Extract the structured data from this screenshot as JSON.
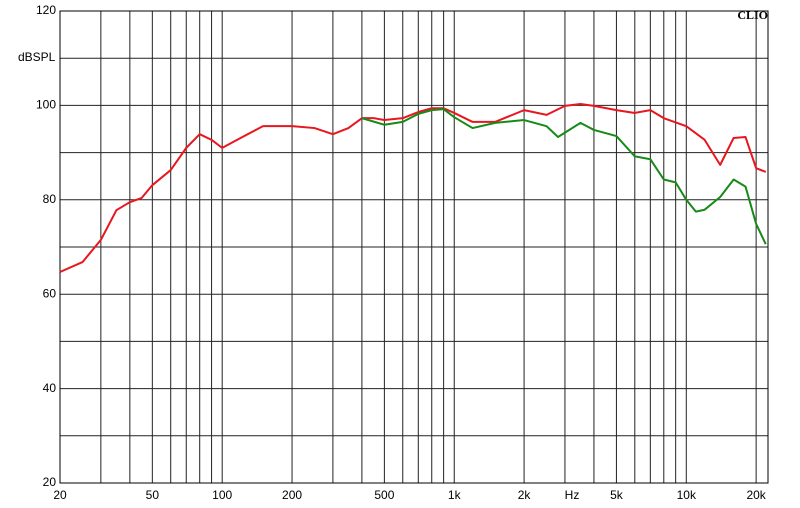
{
  "chart_data": {
    "type": "line",
    "xlabel": "Hz",
    "ylabel": "dBSPL",
    "watermark": "CLIO",
    "log_x": true,
    "grid": true,
    "xlim": [
      20,
      22500
    ],
    "ylim": [
      20,
      120
    ],
    "xticks": [
      20,
      50,
      100,
      200,
      500,
      {
        "value": 1000,
        "label": "1k"
      },
      {
        "value": 2000,
        "label": "2k"
      },
      {
        "value": 5000,
        "label": "5k"
      },
      {
        "value": 10000,
        "label": "10k"
      },
      {
        "value": 20000,
        "label": "20k"
      }
    ],
    "x_minor_ticks": [
      30,
      40,
      60,
      70,
      80,
      90,
      300,
      400,
      600,
      700,
      800,
      900,
      3000,
      4000,
      6000,
      7000,
      8000,
      9000
    ],
    "yticks": [
      20,
      40,
      60,
      80,
      100,
      120
    ],
    "y_minor_ticks": [
      30,
      50,
      70,
      90,
      110
    ],
    "series": [
      {
        "color": "#e8161f",
        "x": [
          20,
          25,
          30,
          35,
          40,
          45,
          50,
          60,
          70,
          80,
          90,
          100,
          120,
          150,
          200,
          250,
          300,
          350,
          400,
          450,
          500,
          600,
          700,
          800,
          900,
          1000,
          1200,
          1500,
          2000,
          2500,
          3000,
          3500,
          4000,
          5000,
          6000,
          7000,
          8000,
          10000,
          12000,
          14000,
          16000,
          18000,
          20000,
          22000
        ],
        "values": [
          64.7,
          66.8,
          71.5,
          77.8,
          79.5,
          80.4,
          83.1,
          86.3,
          91.0,
          93.9,
          92.7,
          91.0,
          93.1,
          95.6,
          95.6,
          95.2,
          93.9,
          95.2,
          97.3,
          97.3,
          96.9,
          97.3,
          98.6,
          99.4,
          99.4,
          98.4,
          96.5,
          96.5,
          99.0,
          98.0,
          99.9,
          100.3,
          99.9,
          99.0,
          98.4,
          99.0,
          97.3,
          95.6,
          92.7,
          87.4,
          93.1,
          93.3,
          86.7,
          85.9
        ]
      },
      {
        "color": "#178a17",
        "x": [
          400,
          500,
          600,
          700,
          800,
          900,
          1000,
          1200,
          1500,
          2000,
          2500,
          2800,
          3500,
          4000,
          5000,
          6000,
          7000,
          8000,
          9000,
          10000,
          11000,
          12000,
          14000,
          16000,
          18000,
          20000,
          22000
        ],
        "values": [
          97.3,
          95.9,
          96.5,
          98.2,
          99.0,
          99.2,
          97.5,
          95.2,
          96.3,
          96.9,
          95.6,
          93.3,
          96.3,
          94.8,
          93.5,
          89.2,
          88.6,
          84.3,
          83.7,
          80.0,
          77.5,
          77.9,
          80.6,
          84.3,
          82.8,
          74.9,
          70.6
        ]
      }
    ]
  }
}
